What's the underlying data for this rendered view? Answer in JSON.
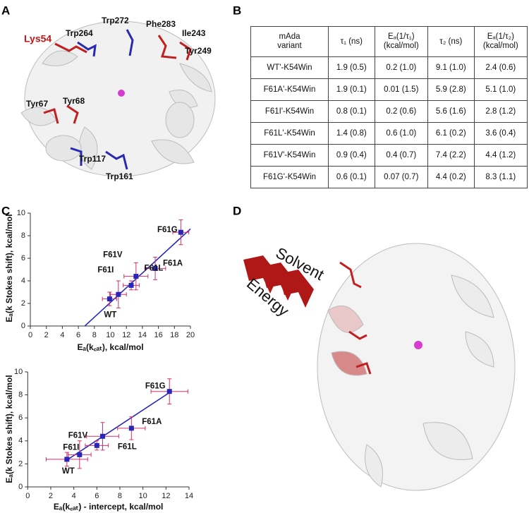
{
  "panel_labels": [
    "A",
    "B",
    "C",
    "D"
  ],
  "panel_a": {
    "labels": [
      "Lys54",
      "Trp264",
      "Trp272",
      "Phe283",
      "Ile243",
      "Tyr249",
      "Tyr67",
      "Tyr68",
      "Trp117",
      "Trp161"
    ]
  },
  "table": {
    "header": [
      "mAda\nvariant",
      "τ₁ (ns)",
      "Eₐ(1/τ₁)\n(kcal/mol)",
      "τ₂ (ns)",
      "Eₐ(1/τ₂)\n(kcal/mol)"
    ],
    "rows": [
      [
        "WT'-K54Win",
        "1.9 (0.5)",
        "0.2 (1.0)",
        "9.1 (1.0)",
        "2.4 (0.6)"
      ],
      [
        "F61A'-K54Win",
        "1.9 (0.1)",
        "0.01 (1.5)",
        "5.9 (2.8)",
        "5.1 (1.0)"
      ],
      [
        "F61I'-K54Win",
        "0.8 (0.1)",
        "0.2 (0.6)",
        "5.6 (1.6)",
        "2.8 (1.2)"
      ],
      [
        "F61L'-K54Win",
        "1.4 (0.8)",
        "0.6 (1.0)",
        "6.1 (0.2)",
        "3.6 (0.4)"
      ],
      [
        "F61V'-K54Win",
        "0.9 (0.4)",
        "0.4 (0.7)",
        "7.4 (2.2)",
        "4.4 (1.2)"
      ],
      [
        "F61G'-K54Win",
        "0.6 (0.1)",
        "0.07 (0.7)",
        "4.4 (0.2)",
        "8.3 (1.1)"
      ]
    ]
  },
  "chart_data": [
    {
      "type": "scatter",
      "xlabel": "Eₐ(k꜀ₐₜ), kcal/mol",
      "ylabel": "Eₐ(k Stokes shift), kcal/mol",
      "point_labels": [
        "WT",
        "F61A",
        "F61I",
        "F61L",
        "F61V",
        "F61G"
      ],
      "x": [
        9.9,
        15.6,
        11.0,
        12.6,
        13.2,
        18.8
      ],
      "values": [
        2.4,
        5.1,
        2.8,
        3.6,
        4.4,
        8.3
      ],
      "xerr": [
        0.9,
        1.3,
        1.0,
        1.0,
        1.5,
        1.0
      ],
      "yerr": [
        0.6,
        1.0,
        1.2,
        0.4,
        1.2,
        1.1
      ],
      "color": "#2626b8",
      "errorbar_color": "#d3306a",
      "xlim": [
        0,
        20
      ],
      "ylim": [
        0,
        10
      ],
      "xticks": [
        0,
        2,
        4,
        6,
        8,
        10,
        12,
        14,
        16,
        18,
        20
      ],
      "yticks": [
        0,
        2,
        4,
        6,
        8,
        10
      ],
      "fit_line": {
        "x": [
          6.8,
          20
        ],
        "y": [
          0,
          8.6
        ],
        "color": "#1f1fc0"
      }
    },
    {
      "type": "scatter",
      "xlabel": "Eₐ(k꜀ₐₜ) - intercept, kcal/mol",
      "ylabel": "Eₐ(k Stokes shift), kcal/mol",
      "point_labels": [
        "WT",
        "F61A",
        "F61I",
        "F61L",
        "F61V",
        "F61G"
      ],
      "x": [
        3.4,
        9.0,
        4.5,
        6.0,
        6.5,
        12.3
      ],
      "values": [
        2.4,
        5.1,
        2.8,
        3.6,
        4.4,
        8.3
      ],
      "xerr": [
        1.8,
        1.2,
        1.0,
        1.0,
        1.4,
        1.6
      ],
      "yerr": [
        0.6,
        1.0,
        1.2,
        0.4,
        1.2,
        1.1
      ],
      "color": "#2626b8",
      "errorbar_color": "#d3306a",
      "xlim": [
        0,
        14
      ],
      "ylim": [
        0,
        10
      ],
      "xticks": [
        0,
        2,
        4,
        6,
        8,
        10,
        12,
        14
      ],
      "yticks": [
        0,
        2,
        4,
        6,
        8,
        10
      ],
      "fit_line": {
        "x": [
          3.2,
          12.3
        ],
        "y": [
          2.2,
          8.2
        ],
        "color": "#1f1fc0"
      }
    }
  ],
  "panel_d": {
    "labels": [
      "Solvent",
      "Energy"
    ]
  }
}
